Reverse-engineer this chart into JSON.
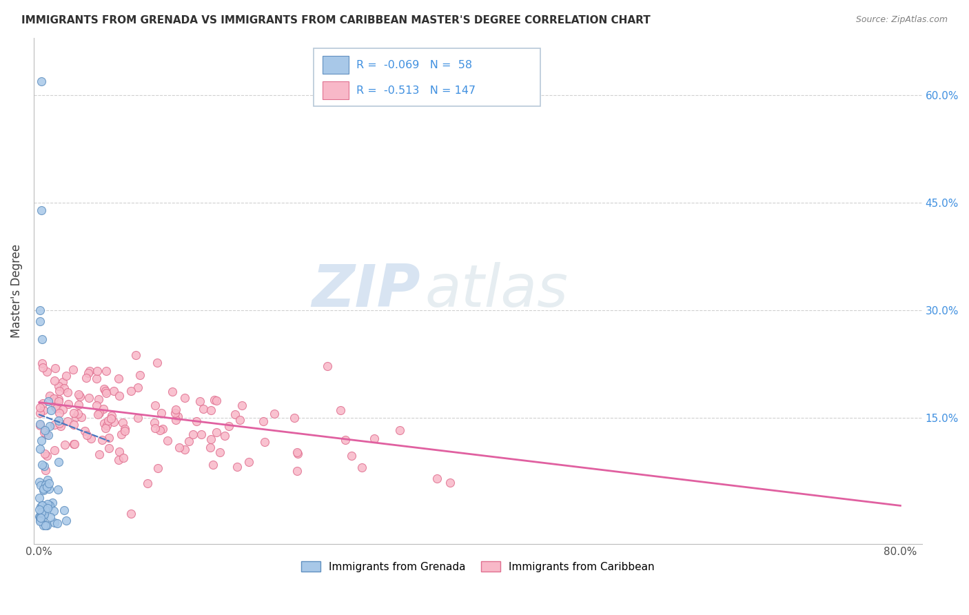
{
  "title": "IMMIGRANTS FROM GRENADA VS IMMIGRANTS FROM CARIBBEAN MASTER'S DEGREE CORRELATION CHART",
  "source": "Source: ZipAtlas.com",
  "ylabel": "Master's Degree",
  "xlim": [
    -0.005,
    0.82
  ],
  "ylim": [
    -0.025,
    0.68
  ],
  "blue_R": -0.069,
  "blue_N": 58,
  "pink_R": -0.513,
  "pink_N": 147,
  "watermark_zip": "ZIP",
  "watermark_atlas": "atlas",
  "blue_line_x": [
    0.0,
    0.065
  ],
  "blue_line_y": [
    0.155,
    0.118
  ],
  "pink_line_x": [
    0.0,
    0.8
  ],
  "pink_line_y": [
    0.172,
    0.028
  ],
  "color_blue_scatter_face": "#a8c8e8",
  "color_blue_scatter_edge": "#6090c0",
  "color_pink_scatter_face": "#f8b8c8",
  "color_pink_scatter_edge": "#e07090",
  "color_blue_line": "#4878c0",
  "color_pink_line": "#e060a0",
  "color_title": "#303030",
  "color_source": "#808080",
  "color_right_axis": "#4090e0",
  "color_grid": "#d0d0d0",
  "bg_color": "#ffffff",
  "blue_seed": 12,
  "pink_seed": 7
}
